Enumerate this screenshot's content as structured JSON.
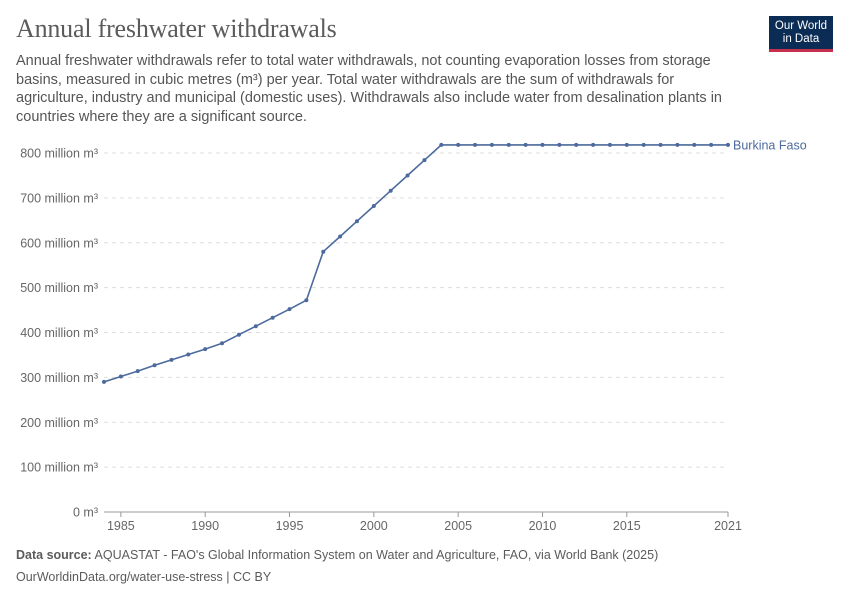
{
  "header": {
    "title": "Annual freshwater withdrawals",
    "subtitle": "Annual freshwater withdrawals refer to total water withdrawals, not counting evaporation losses from storage basins, measured in cubic metres (m³) per year. Total water withdrawals are the sum of withdrawals for agriculture, industry and municipal (domestic uses). Withdrawals also include water from desalination plants in countries where they are a significant source."
  },
  "logo": {
    "line1": "Our World",
    "line2": "in Data"
  },
  "footer": {
    "source_label": "Data source:",
    "source_text": "AQUASTAT - FAO's Global Information System on Water and Agriculture, FAO, via World Bank (2025)",
    "url_text": "OurWorldinData.org/water-use-stress",
    "license_text": "CC BY"
  },
  "chart_data": {
    "type": "line",
    "title": "Annual freshwater withdrawals",
    "xlabel": "",
    "ylabel": "",
    "unit_suffix": "million m³",
    "zero_label": "0 m³",
    "xlim": [
      1984,
      2021
    ],
    "ylim": [
      0,
      800
    ],
    "y_ticks": [
      0,
      100,
      200,
      300,
      400,
      500,
      600,
      700,
      800
    ],
    "x_ticks": [
      1985,
      1990,
      1995,
      2000,
      2005,
      2010,
      2015,
      2021
    ],
    "grid": true,
    "line_color": "#4c6a9c",
    "series": [
      {
        "name": "Burkina Faso",
        "x": [
          1984,
          1985,
          1986,
          1987,
          1988,
          1989,
          1990,
          1991,
          1992,
          1993,
          1994,
          1995,
          1996,
          1997,
          1998,
          1999,
          2000,
          2001,
          2002,
          2003,
          2004,
          2005,
          2006,
          2007,
          2008,
          2009,
          2010,
          2011,
          2012,
          2013,
          2014,
          2015,
          2016,
          2017,
          2018,
          2019,
          2020,
          2021
        ],
        "values": [
          290,
          302,
          314,
          327,
          339,
          351,
          363,
          376,
          395,
          414,
          433,
          452,
          472,
          580,
          614,
          648,
          682,
          716,
          750,
          784,
          818,
          818,
          818,
          818,
          818,
          818,
          818,
          818,
          818,
          818,
          818,
          818,
          818,
          818,
          818,
          818,
          818,
          818
        ]
      }
    ]
  }
}
